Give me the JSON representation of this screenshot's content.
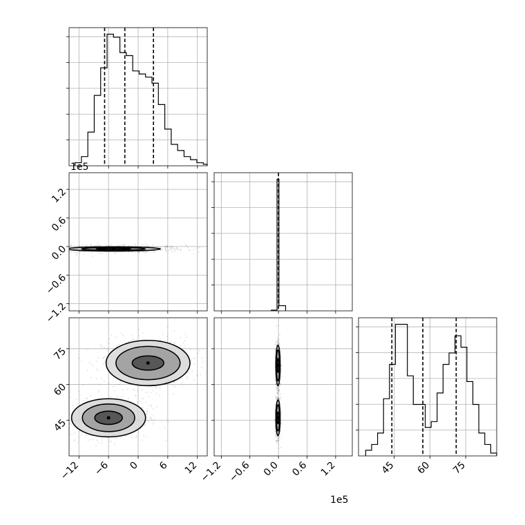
{
  "chart_data": {
    "type": "corner",
    "offset_labels": {
      "param2": "1e5"
    },
    "params": [
      {
        "range": [
          -14,
          14
        ],
        "ticks": [
          -12,
          -6,
          0,
          6,
          12
        ],
        "tick_labels": [
          "−12",
          "−6",
          "0",
          "6",
          "12"
        ],
        "quantiles": [
          -6.8,
          -2.7,
          3.1
        ],
        "hist": {
          "edges": [
            -12.8,
            -11.5,
            -10.2,
            -8.9,
            -7.6,
            -6.3,
            -5.0,
            -3.7,
            -2.4,
            -1.1,
            0.2,
            1.5,
            2.8,
            4.1,
            5.4,
            6.7,
            8.0,
            9.3,
            10.6,
            11.9,
            13.2,
            14.5
          ],
          "counts": [
            1,
            3,
            11,
            23,
            32,
            43,
            42,
            37,
            36,
            31,
            30,
            29,
            27,
            20,
            12,
            7,
            5,
            3,
            2,
            1,
            0.5
          ]
        }
      },
      {
        "range": [
          -1.35,
          1.55
        ],
        "ticks": [
          -1.2,
          -0.6,
          0.0,
          0.6,
          1.2
        ],
        "tick_labels": [
          "−1.2",
          "−0.6",
          "0.0",
          "0.6",
          "1.2"
        ],
        "quantiles": [
          0.0
        ],
        "hist": {
          "edges": [
            -0.15,
            -0.03,
            0.01,
            0.15
          ],
          "counts": [
            0.2,
            38,
            1.5
          ]
        }
      },
      {
        "range": [
          30,
          88
        ],
        "ticks": [
          45,
          60,
          75
        ],
        "tick_labels": [
          "45",
          "60",
          "75"
        ],
        "quantiles": [
          44,
          57,
          71
        ],
        "hist": {
          "edges": [
            33,
            35.5,
            38,
            40.5,
            43,
            45.5,
            48,
            50.5,
            53,
            55.5,
            58,
            60.5,
            63,
            65.5,
            68,
            70.5,
            73,
            75.5,
            78,
            80.5,
            83,
            85.5,
            88
          ],
          "counts": [
            1,
            2,
            4,
            10,
            16,
            23,
            23,
            14,
            9,
            9,
            5,
            6,
            11,
            16,
            18,
            21,
            19,
            13,
            9,
            4,
            2,
            0.5
          ]
        }
      }
    ],
    "panels": [
      {
        "row": 1,
        "col": 0,
        "blobs": [
          {
            "cx": -5,
            "cy": -0.05,
            "rx": [
              9.5,
              6.5,
              3.5
            ],
            "ry": [
              0.045,
              0.03,
              0.015
            ]
          }
        ]
      },
      {
        "row": 2,
        "col": 0,
        "blobs": [
          {
            "cx": 2,
            "cy": 69,
            "rx": [
              8.5,
              6.5,
              3.2
            ],
            "ry": [
              9.5,
              7,
              3
            ]
          },
          {
            "cx": -6,
            "cy": 46,
            "rx": [
              7.5,
              5.3,
              2.8
            ],
            "ry": [
              8,
              5.8,
              2.8
            ]
          }
        ]
      },
      {
        "row": 2,
        "col": 1,
        "blobs": [
          {
            "cx": -0.01,
            "cy": 68,
            "rx": [
              0.045,
              0.035,
              0.018
            ],
            "ry": [
              8.5,
              6.5,
              3
            ]
          },
          {
            "cx": -0.01,
            "cy": 46,
            "rx": [
              0.045,
              0.035,
              0.018
            ],
            "ry": [
              7.5,
              5.5,
              2.5
            ]
          }
        ]
      }
    ]
  }
}
